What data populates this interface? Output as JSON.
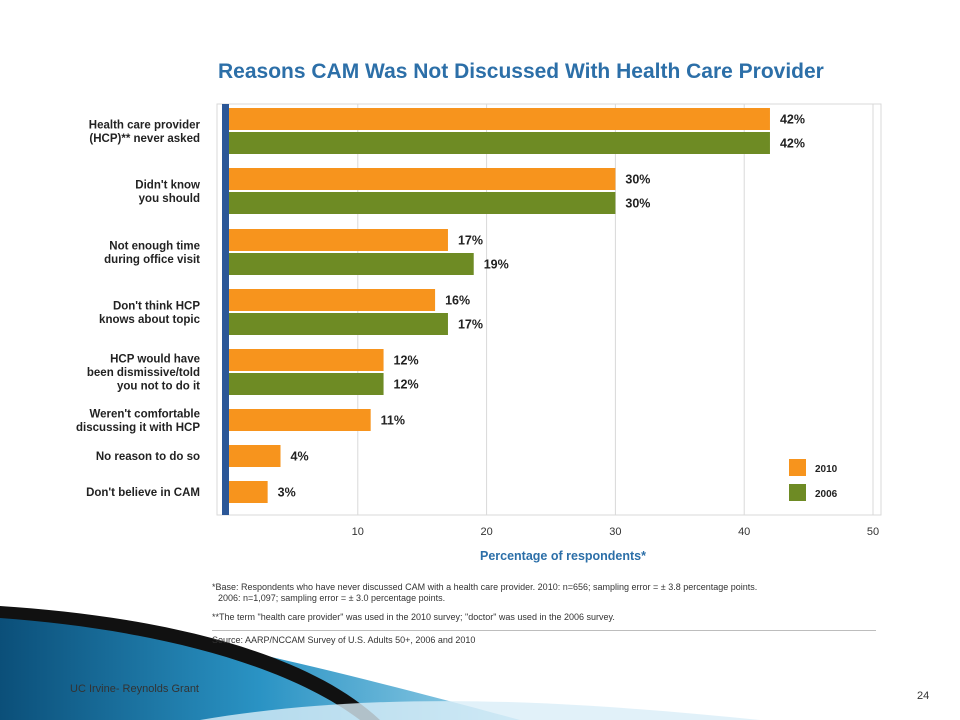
{
  "slide": {
    "title": "Reasons CAM Was Not Discussed With Health Care Provider",
    "footer": "UC Irvine- Reynolds Grant",
    "page_number": "24"
  },
  "notes": {
    "base_line1": "*Base: Respondents who have never discussed CAM with a health care provider. 2010: n=656; sampling error = ± 3.8 percentage points.",
    "base_line2": "2006: n=1,097; sampling error = ± 3.0 percentage points.",
    "term": "**The term \"health care provider\" was used in the 2010 survey; \"doctor\" was used in the 2006 survey.",
    "source": "Source: AARP/NCCAM Survey of U.S. Adults 50+, 2006 and 2010"
  },
  "colors": {
    "s2010": "#f7941d",
    "s2006": "#6e8b24",
    "axis": "#2b5797",
    "grid": "#d9d9d9",
    "title": "#2c6fa8"
  },
  "chart_data": {
    "type": "bar",
    "orientation": "horizontal",
    "title": "Reasons CAM Was Not Discussed With Health Care Provider",
    "xlabel": "Percentage of respondents*",
    "ylabel": "",
    "xlim": [
      0,
      50
    ],
    "xticks": [
      10,
      20,
      30,
      40,
      50
    ],
    "grid": true,
    "legend_position": "bottom-right",
    "categories": [
      [
        "Health care provider",
        "(HCP)** never asked"
      ],
      [
        "Didn't know",
        "you should"
      ],
      [
        "Not enough time",
        "during office visit"
      ],
      [
        "Don't think HCP",
        "knows about topic"
      ],
      [
        "HCP would have",
        "been dismissive/told",
        "you not to do it"
      ],
      [
        "Weren't comfortable",
        "discussing it with HCP"
      ],
      [
        "No reason to do so"
      ],
      [
        "Don't believe in CAM"
      ]
    ],
    "series": [
      {
        "name": "2010",
        "color": "#f7941d",
        "values": [
          42,
          30,
          17,
          16,
          12,
          11,
          4,
          3
        ],
        "labels": [
          "42%",
          "30%",
          "17%",
          "16%",
          "12%",
          "11%",
          "4%",
          "3%"
        ]
      },
      {
        "name": "2006",
        "color": "#6e8b24",
        "values": [
          42,
          30,
          19,
          17,
          12,
          null,
          null,
          null
        ],
        "labels": [
          "42%",
          "30%",
          "19%",
          "17%",
          "12%",
          "",
          "",
          ""
        ]
      }
    ]
  }
}
